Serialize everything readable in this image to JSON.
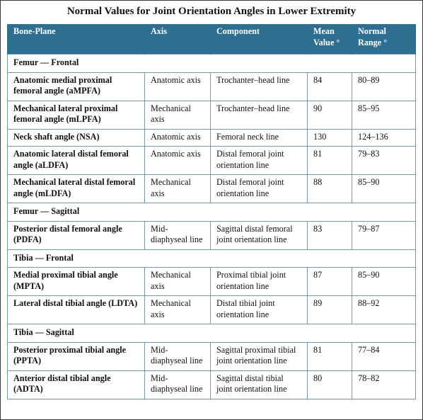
{
  "title": "Normal Values for Joint Orientation Angles in Lower Extremity",
  "headers": {
    "bone_plane": "Bone-Plane",
    "axis": "Axis",
    "component": "Component",
    "mean": "Mean Value °",
    "range": "Normal Range °"
  },
  "sections": [
    {
      "label": "Femur — Frontal",
      "rows": [
        {
          "name": "Anatomic medial proximal femoral angle (aMPFA)",
          "axis": "Anatomic axis",
          "component": "Trochanter–head line",
          "mean": "84",
          "range": "80–89"
        },
        {
          "name": "Mechanical lateral proximal femoral angle (mLPFA)",
          "axis": "Mechanical axis",
          "component": "Trochanter–head line",
          "mean": "90",
          "range": "85–95"
        },
        {
          "name": "Neck shaft angle (NSA)",
          "axis": "Anatomic axis",
          "component": "Femoral neck line",
          "mean": "130",
          "range": "124–136"
        },
        {
          "name": "Anatomic lateral distal femoral angle (aLDFA)",
          "axis": "Anatomic axis",
          "component": "Distal femoral joint orientation line",
          "mean": "81",
          "range": "79–83"
        },
        {
          "name": "Mechanical lateral distal femoral angle (mLDFA)",
          "axis": "Mechanical axis",
          "component": "Distal femoral joint orientation line",
          "mean": "88",
          "range": "85–90"
        }
      ]
    },
    {
      "label": "Femur — Sagittal",
      "rows": [
        {
          "name": "Posterior distal femoral angle (PDFA)",
          "axis": "Mid-diaphyseal line",
          "component": "Sagittal distal femoral joint orientation line",
          "mean": "83",
          "range": "79–87"
        }
      ]
    },
    {
      "label": "Tibia — Frontal",
      "rows": [
        {
          "name": "Medial proximal tibial angle (MPTA)",
          "axis": "Mechanical axis",
          "component": "Proximal tibial joint orientation line",
          "mean": "87",
          "range": "85–90"
        },
        {
          "name": "Lateral distal tibial angle (LDTA)",
          "axis": "Mechanical axis",
          "component": "Distal tibial joint orientation line",
          "mean": "89",
          "range": "88–92"
        }
      ]
    },
    {
      "label": "Tibia — Sagittal",
      "rows": [
        {
          "name": "Posterior proximal tibial angle (PPTA)",
          "axis": "Mid-diaphyseal line",
          "component": "Sagittal proximal tibial joint orientation line",
          "mean": "81",
          "range": "77–84"
        },
        {
          "name": "Anterior distal tibial angle (ADTA)",
          "axis": "Mid-diaphyseal line",
          "component": "Sagittal distal tibial joint orientation line",
          "mean": "80",
          "range": "78–82"
        }
      ]
    }
  ]
}
